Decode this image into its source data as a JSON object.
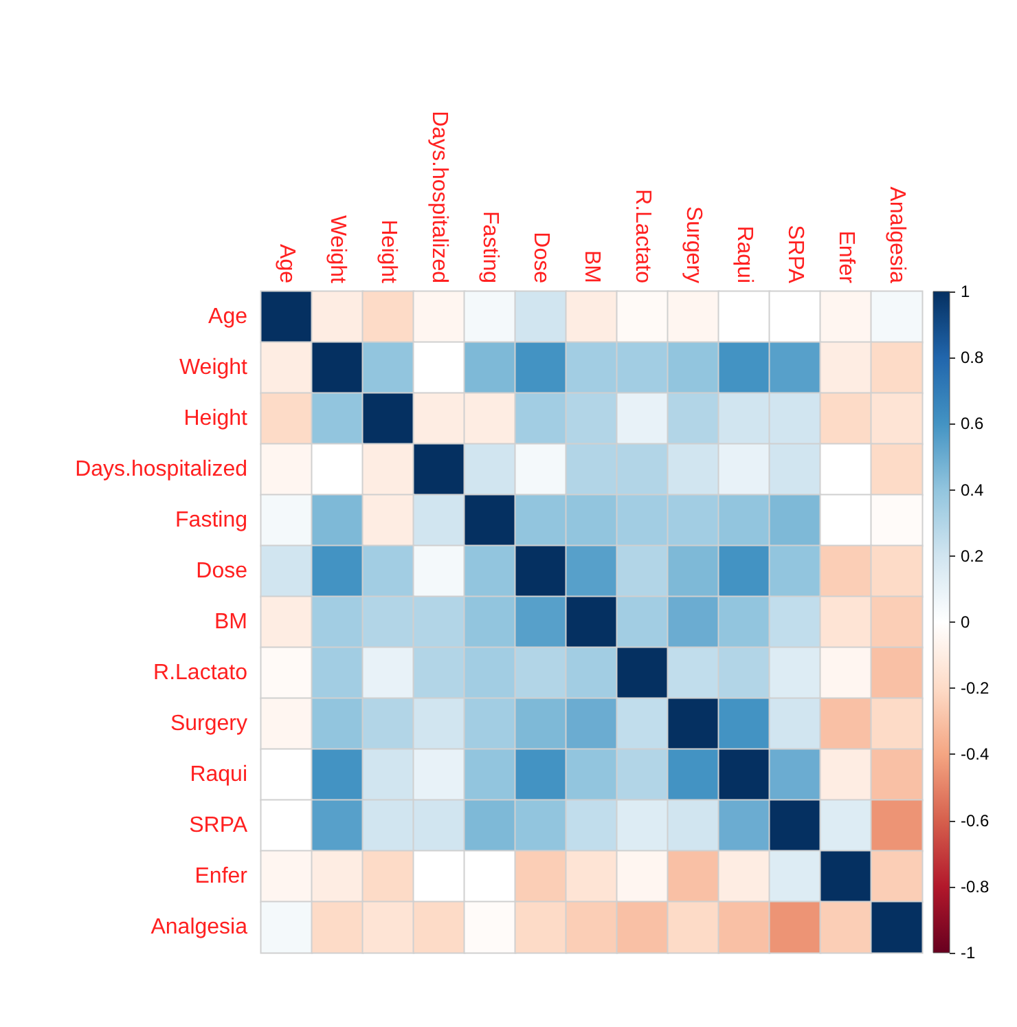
{
  "chart_data": {
    "type": "heatmap",
    "categories": [
      "Age",
      "Weight",
      "Height",
      "Days.hospitalized",
      "Fasting",
      "Dose",
      "BM",
      "R.Lactato",
      "Surgery",
      "Raqui",
      "SRPA",
      "Enfer",
      "Analgesia"
    ],
    "y_categories": [
      "Age",
      "Weight",
      "Height",
      "Days.hospitalized",
      "Fasting",
      "Dose",
      "BM",
      "R.Lactato",
      "Surgery",
      "Raqui",
      "SRPA",
      "Enfer",
      "Analgesia"
    ],
    "cells": [
      [
        1,
        -0.1,
        -0.2,
        -0.05,
        0.05,
        0.2,
        -0.1,
        -0.03,
        -0.05,
        0,
        0,
        -0.05,
        0.05
      ],
      [
        -0.1,
        1,
        0.4,
        0,
        0.45,
        0.6,
        0.35,
        0.35,
        0.4,
        0.6,
        0.55,
        -0.1,
        -0.2
      ],
      [
        -0.2,
        0.4,
        1,
        -0.1,
        -0.1,
        0.35,
        0.3,
        0.1,
        0.3,
        0.2,
        0.2,
        -0.2,
        -0.15
      ],
      [
        -0.05,
        0,
        -0.1,
        1,
        0.2,
        0.05,
        0.3,
        0.3,
        0.2,
        0.1,
        0.2,
        0,
        -0.2
      ],
      [
        0.05,
        0.45,
        -0.1,
        0.2,
        1,
        0.4,
        0.4,
        0.35,
        0.35,
        0.4,
        0.45,
        0,
        -0.02
      ],
      [
        0.2,
        0.6,
        0.35,
        0.05,
        0.4,
        1,
        0.55,
        0.3,
        0.45,
        0.6,
        0.4,
        -0.25,
        -0.2
      ],
      [
        -0.1,
        0.35,
        0.3,
        0.3,
        0.4,
        0.55,
        1,
        0.35,
        0.5,
        0.4,
        0.25,
        -0.15,
        -0.25
      ],
      [
        -0.03,
        0.35,
        0.1,
        0.3,
        0.35,
        0.3,
        0.35,
        1,
        0.25,
        0.3,
        0.15,
        -0.05,
        -0.3
      ],
      [
        -0.05,
        0.4,
        0.3,
        0.2,
        0.35,
        0.45,
        0.5,
        0.25,
        1,
        0.6,
        0.2,
        -0.3,
        -0.2
      ],
      [
        0,
        0.6,
        0.2,
        0.1,
        0.4,
        0.6,
        0.4,
        0.3,
        0.6,
        1,
        0.5,
        -0.1,
        -0.3
      ],
      [
        0,
        0.55,
        0.2,
        0.2,
        0.45,
        0.4,
        0.25,
        0.15,
        0.2,
        0.5,
        1,
        0.15,
        -0.45
      ],
      [
        -0.05,
        -0.1,
        -0.2,
        0,
        0,
        -0.25,
        -0.15,
        -0.05,
        -0.3,
        -0.1,
        0.15,
        1,
        -0.25
      ],
      [
        0.05,
        -0.2,
        -0.15,
        -0.2,
        -0.02,
        -0.2,
        -0.25,
        -0.3,
        -0.2,
        -0.3,
        -0.45,
        -0.25,
        1
      ]
    ],
    "clim": [
      -1,
      1
    ],
    "cticks": [
      -1,
      -0.8,
      -0.6,
      -0.4,
      -0.2,
      0,
      0.2,
      0.4,
      0.6,
      0.8,
      1
    ]
  }
}
